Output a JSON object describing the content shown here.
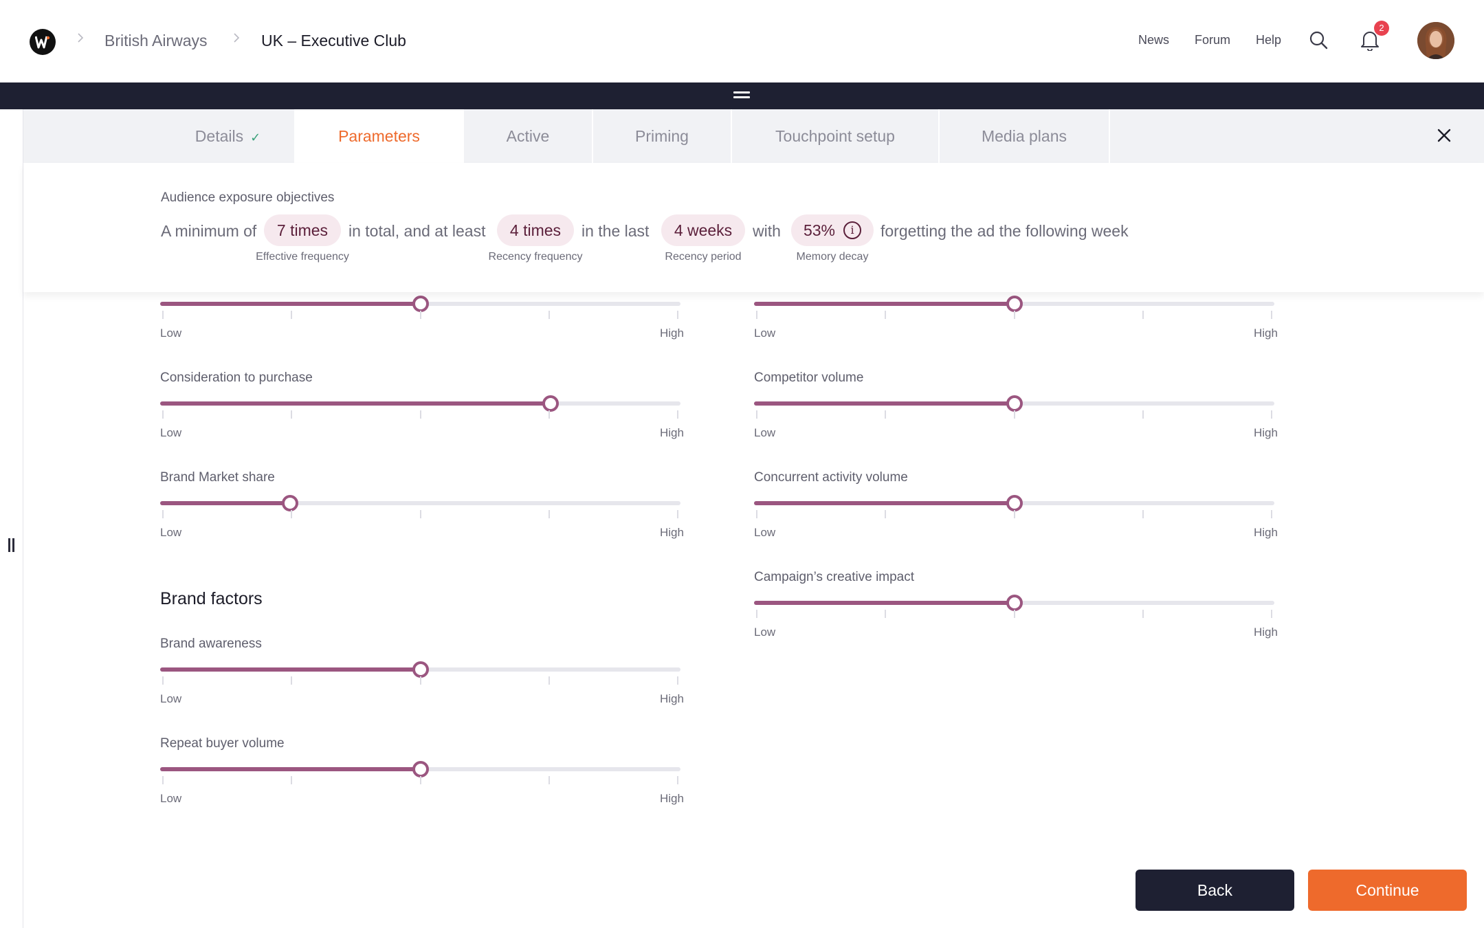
{
  "breadcrumb": {
    "item1": "British Airways",
    "item2": "UK – Executive Club"
  },
  "nav": {
    "news": "News",
    "forum": "Forum",
    "help": "Help"
  },
  "icons": {
    "search": "search-icon",
    "bell": "bell-icon",
    "close": "close-icon",
    "info": "info-icon",
    "check": "check-icon",
    "logo": "logo-w-icon"
  },
  "notifications": {
    "count": "2"
  },
  "tabs": [
    {
      "label": "Details",
      "completed": true
    },
    {
      "label": "Parameters",
      "active": true
    },
    {
      "label": "Active"
    },
    {
      "label": "Priming"
    },
    {
      "label": "Touchpoint setup"
    },
    {
      "label": "Media plans"
    }
  ],
  "objectives": {
    "title": "Audience exposure objectives",
    "text_1": "A minimum of",
    "text_2": "in total, and at least",
    "text_3": "in the last",
    "text_4": "with",
    "text_5": "forgetting the ad the following week",
    "effective_frequency": {
      "value": "7 times",
      "label": "Effective frequency"
    },
    "recency_frequency": {
      "value": "4 times",
      "label": "Recency frequency"
    },
    "recency_period": {
      "value": "4 weeks",
      "label": "Recency period"
    },
    "memory_decay": {
      "value": "53%",
      "label": "Memory decay"
    }
  },
  "scale": {
    "low": "Low",
    "high": "High"
  },
  "sliders_left_top": [
    {
      "label": "",
      "value": 0.5
    },
    {
      "label": "Consideration to purchase",
      "value": 0.75
    },
    {
      "label": "Brand Market share",
      "value": 0.25
    }
  ],
  "brand_factors": {
    "title": "Brand factors",
    "sliders": [
      {
        "label": "Brand awareness",
        "value": 0.5
      },
      {
        "label": "Repeat buyer volume",
        "value": 0.5
      }
    ]
  },
  "sliders_right": [
    {
      "label": "",
      "value": 0.5
    },
    {
      "label": "Competitor volume",
      "value": 0.5
    },
    {
      "label": "Concurrent activity volume",
      "value": 0.5
    },
    {
      "label": "Campaign’s creative impact",
      "value": 0.5
    }
  ],
  "actions": {
    "back": "Back",
    "continue": "Continue"
  },
  "colors": {
    "accent": "#ee6a2c",
    "slider": "#9b5680",
    "dark": "#1e2032",
    "pill_bg": "#f6e9ee"
  }
}
